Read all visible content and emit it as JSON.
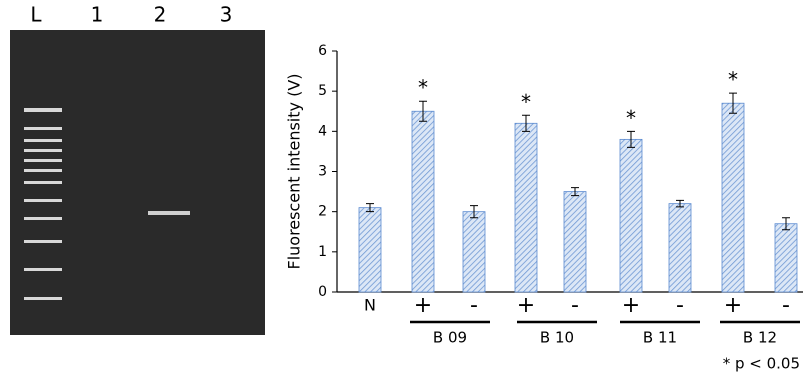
{
  "gel_labels": [
    "L",
    "1",
    "2",
    "3"
  ],
  "chart_data": {
    "type": "bar",
    "y_label": "Fluorescent intensity (V)",
    "categories": [
      "N",
      "+",
      "-",
      "+",
      "-",
      "+",
      "-",
      "+",
      "-"
    ],
    "values": [
      2.1,
      4.5,
      2.0,
      4.2,
      2.5,
      3.8,
      2.2,
      4.7,
      1.7
    ],
    "errors": [
      0.1,
      0.25,
      0.15,
      0.2,
      0.1,
      0.2,
      0.08,
      0.25,
      0.15
    ],
    "markers": [
      null,
      "*",
      null,
      "*",
      null,
      "*",
      null,
      "*",
      null
    ],
    "groups": [
      "B 09",
      "B 10",
      "B 11",
      "B 12"
    ],
    "note": "* p < 0.05",
    "color": "#5b8ad0",
    "ylim": [
      0,
      6
    ],
    "yticks": [
      0,
      1,
      2,
      3,
      4,
      5,
      6
    ]
  }
}
